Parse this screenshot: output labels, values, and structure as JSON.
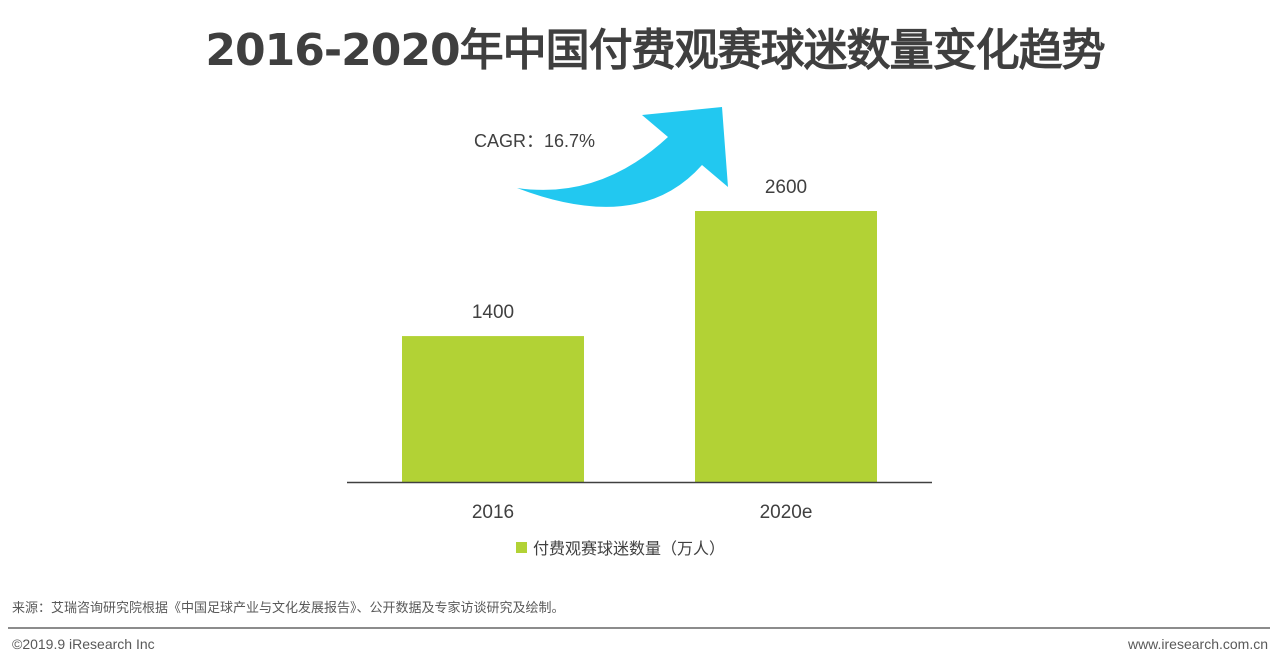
{
  "chart_data": {
    "type": "bar",
    "title": "2016-2020年中国付费观赛球迷数量变化趋势",
    "categories": [
      "2016",
      "2020e"
    ],
    "series": [
      {
        "name": "付费观赛球迷数量（万人）",
        "values": [
          1400,
          2600
        ],
        "color": "#b2d235"
      }
    ],
    "data_labels": [
      "1400",
      "2600"
    ],
    "annotation": "CAGR：16.7%",
    "annotation_arrow_color": "#22c8f0",
    "ylim": [
      0,
      2600
    ],
    "grid": false,
    "legend": "bottom"
  },
  "footer": {
    "source": "来源：艾瑞咨询研究院根据《中国足球产业与文化发展报告》、公开数据及专家访谈研究及绘制。",
    "copyright": "©2019.9 iResearch Inc",
    "site": "www.iresearch.com.cn"
  }
}
